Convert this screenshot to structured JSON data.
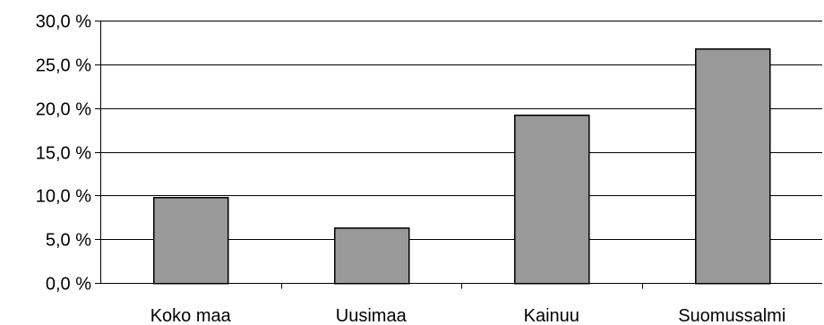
{
  "chart_data": {
    "type": "bar",
    "categories": [
      "Koko maa",
      "Uusimaa",
      "Kainuu",
      "Suomussalmi"
    ],
    "values": [
      9.8,
      6.3,
      19.3,
      26.8
    ],
    "ylim": [
      0,
      30
    ],
    "ytick_step": 5,
    "ytick_labels": [
      "0,0 %",
      "5,0 %",
      "10,0 %",
      "15,0 %",
      "20,0 %",
      "25,0 %",
      "30,0 %"
    ],
    "grid": true,
    "legend": "none",
    "colors": {
      "bar_fill": "#999999",
      "bar_stroke": "#000000",
      "grid": "#000000",
      "axis": "#000000",
      "background": "#ffffff"
    }
  }
}
